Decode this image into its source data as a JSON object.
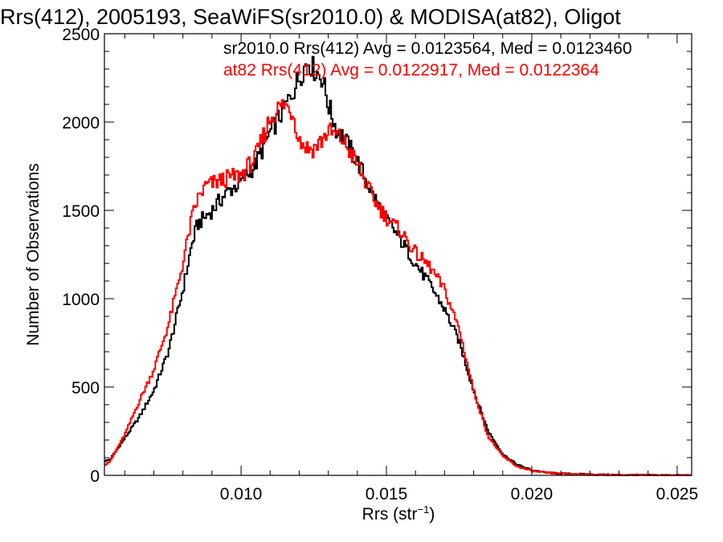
{
  "chart_data": {
    "type": "line",
    "title": "Rrs(412), 2005193, SeaWiFS(sr2010.0) & MODISA(at82), Oligot",
    "xlabel": "Rrs (str",
    "xlabel_sup": "−1",
    "xlabel_suffix": ")",
    "ylabel": "Number of Observations",
    "xlim": [
      0.0053,
      0.0255
    ],
    "ylim": [
      0,
      2500
    ],
    "x_ticks": [
      0.01,
      0.015,
      0.02,
      0.025
    ],
    "x_tick_labels": [
      "0.010",
      "0.015",
      "0.020",
      "0.025"
    ],
    "y_ticks": [
      0,
      500,
      1000,
      1500,
      2000,
      2500
    ],
    "y_tick_labels": [
      "0",
      "500",
      "1000",
      "1500",
      "2000",
      "2500"
    ],
    "grid": false,
    "legend_position": "top-right",
    "step_style": "histogram",
    "series": [
      {
        "legend": "sr2010.0 Rrs(412) Avg = 0.0123564, Med = 0.0123460",
        "color": "#000000",
        "x": [
          0.0053,
          0.0055,
          0.006,
          0.0065,
          0.007,
          0.0075,
          0.008,
          0.0083,
          0.0085,
          0.009,
          0.0095,
          0.01,
          0.0105,
          0.011,
          0.0115,
          0.0118,
          0.012,
          0.0123,
          0.0125,
          0.0128,
          0.013,
          0.0133,
          0.0135,
          0.014,
          0.0145,
          0.015,
          0.0155,
          0.016,
          0.0165,
          0.017,
          0.0175,
          0.018,
          0.0185,
          0.019,
          0.0195,
          0.02,
          0.0205,
          0.021,
          0.022,
          0.023,
          0.024,
          0.0255
        ],
        "y": [
          80,
          90,
          210,
          330,
          480,
          700,
          1050,
          1300,
          1420,
          1500,
          1600,
          1660,
          1760,
          1940,
          2080,
          2180,
          2250,
          2350,
          2300,
          2250,
          2100,
          1950,
          1920,
          1780,
          1600,
          1450,
          1330,
          1200,
          1080,
          940,
          760,
          480,
          250,
          120,
          60,
          30,
          15,
          10,
          5,
          2,
          1,
          0
        ]
      },
      {
        "legend": "at82 Rrs(412) Avg = 0.0122917, Med = 0.0122364",
        "color": "#ff0000",
        "x": [
          0.0053,
          0.0055,
          0.006,
          0.0065,
          0.007,
          0.0075,
          0.008,
          0.0083,
          0.0085,
          0.0088,
          0.009,
          0.0095,
          0.01,
          0.0105,
          0.011,
          0.0113,
          0.0115,
          0.0118,
          0.012,
          0.0123,
          0.0125,
          0.0128,
          0.013,
          0.0133,
          0.0135,
          0.014,
          0.0145,
          0.015,
          0.0155,
          0.016,
          0.0165,
          0.017,
          0.0175,
          0.018,
          0.0185,
          0.019,
          0.0195,
          0.02,
          0.0205,
          0.021,
          0.022,
          0.023,
          0.024,
          0.0255
        ],
        "y": [
          60,
          80,
          230,
          420,
          600,
          850,
          1200,
          1450,
          1560,
          1640,
          1650,
          1680,
          1700,
          1800,
          2020,
          2080,
          2100,
          2050,
          1900,
          1850,
          1850,
          1900,
          1950,
          1920,
          1900,
          1760,
          1580,
          1460,
          1380,
          1260,
          1180,
          1050,
          830,
          480,
          220,
          110,
          50,
          25,
          15,
          10,
          5,
          2,
          1,
          0
        ]
      }
    ]
  }
}
